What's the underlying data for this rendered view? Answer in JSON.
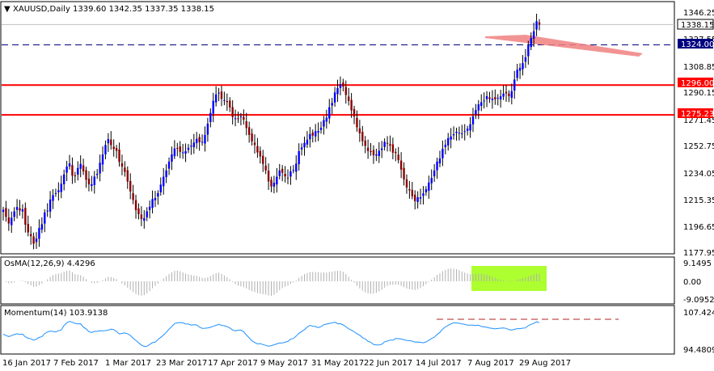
{
  "symbol_header": {
    "marker": "▼",
    "text": "XAUUSD,Daily  1339.60 1342.35 1337.35 1338.15"
  },
  "x_axis_labels": [
    "16 Jan 2017",
    "7 Feb 2017",
    "1 Mar 2017",
    "23 Mar 2017",
    "17 Apr 2017",
    "9 May 2017",
    "31 May 2017",
    "22 Jun 2017",
    "14 Jul 2017",
    "7 Aug 2017",
    "29 Aug 2017"
  ],
  "price_axis": {
    "ticks": [
      "1346.25",
      "1327.55",
      "1308.85",
      "1290.15",
      "1271.45",
      "1252.75",
      "1234.05",
      "1215.35",
      "1196.65",
      "1177.95"
    ],
    "current_price_tag": "1338.15",
    "levels": [
      {
        "label": "1324.00",
        "color": "#000080",
        "style": "dashed"
      },
      {
        "label": "1296.00",
        "color": "#ff0000",
        "style": "solid"
      },
      {
        "label": "1275.23",
        "color": "#ff0000",
        "style": "solid"
      }
    ]
  },
  "osma": {
    "header": "OsMA(12,26,9) 4.4296",
    "ticks": [
      "9.1495",
      "0.00",
      "-9.0952"
    ],
    "highlight_color": "#adff2f"
  },
  "momentum": {
    "header": "Momentum(14) 103.9138",
    "ticks": [
      "107.4242",
      "94.4809"
    ],
    "line_color": "#1e90ff",
    "level_color": "#b22222"
  },
  "colors": {
    "bull": "#0000ff",
    "bear": "#8b0000",
    "trend_band": "#f08080",
    "grid_border": "#000000"
  },
  "chart_data": {
    "type": "candlestick",
    "symbol": "XAUUSD",
    "timeframe": "Daily",
    "last_bar": {
      "open": 1339.6,
      "high": 1342.35,
      "low": 1337.35,
      "close": 1338.15
    },
    "ylim": [
      1177.95,
      1346.25
    ],
    "closes": [
      1209.2,
      1204.2,
      1199.6,
      1203.6,
      1208.1,
      1211.1,
      1208.7,
      1209.5,
      1198.8,
      1193.4,
      1190.8,
      1185.5,
      1189.1,
      1196.5,
      1199.1,
      1207.3,
      1208.6,
      1216.3,
      1219.4,
      1220.8,
      1222.7,
      1227.3,
      1233.8,
      1239.3,
      1241.5,
      1232.9,
      1232.5,
      1238.3,
      1241.1,
      1235.9,
      1230.1,
      1226.8,
      1226.9,
      1232.3,
      1234.2,
      1241.9,
      1247.7,
      1254.3,
      1258.4,
      1254.2,
      1251.5,
      1250.2,
      1242.5,
      1239.2,
      1235.6,
      1228.8,
      1221.9,
      1216.0,
      1208.9,
      1206.1,
      1202.7,
      1203.4,
      1208.1,
      1211.3,
      1216.6,
      1217.4,
      1220.8,
      1226.7,
      1232.2,
      1236.6,
      1242.7,
      1247.7,
      1251.9,
      1252.2,
      1249.5,
      1249.2,
      1250.0,
      1252.4,
      1253.8,
      1256.0,
      1258.6,
      1256.2,
      1256.5,
      1261.3,
      1269.1,
      1276.6,
      1285.0,
      1289.5,
      1290.7,
      1286.4,
      1285.5,
      1284.1,
      1280.4,
      1273.8,
      1272.9,
      1272.8,
      1274.1,
      1271.9,
      1266.1,
      1261.3,
      1256.8,
      1254.3,
      1249.1,
      1246.3,
      1241.1,
      1236.6,
      1228.9,
      1225.4,
      1228.0,
      1232.2,
      1236.6,
      1234.9,
      1232.4,
      1231.4,
      1235.9,
      1236.8,
      1241.3,
      1250.0,
      1252.6,
      1255.8,
      1258.0,
      1261.9,
      1260.8,
      1263.9,
      1264.0,
      1266.3,
      1271.6,
      1273.3,
      1280.6,
      1283.6,
      1290.9,
      1293.9,
      1296.6,
      1295.0,
      1289.1,
      1285.0,
      1278.4,
      1274.1,
      1266.6,
      1262.4,
      1257.0,
      1253.6,
      1250.1,
      1249.6,
      1247.1,
      1247.7,
      1250.3,
      1251.9,
      1256.5,
      1255.7,
      1253.8,
      1248.9,
      1248.7,
      1243.7,
      1237.1,
      1230.4,
      1224.7,
      1222.7,
      1218.6,
      1215.2,
      1217.9,
      1217.9,
      1220.6,
      1223.5,
      1228.1,
      1231.3,
      1236.5,
      1242.7,
      1244.9,
      1251.6,
      1254.4,
      1259.1,
      1260.3,
      1261.8,
      1263.5,
      1262.8,
      1262.4,
      1263.9,
      1265.6,
      1268.7,
      1274.2,
      1278.6,
      1282.6,
      1284.1,
      1285.2,
      1288.3,
      1286.3,
      1286.6,
      1286.1,
      1287.1,
      1288.2,
      1290.1,
      1290.2,
      1288.3,
      1291.8,
      1299.9,
      1306.7,
      1308.0,
      1311.3,
      1315.4,
      1323.6,
      1328.7,
      1333.5,
      1340.5,
      1338.15
    ]
  }
}
